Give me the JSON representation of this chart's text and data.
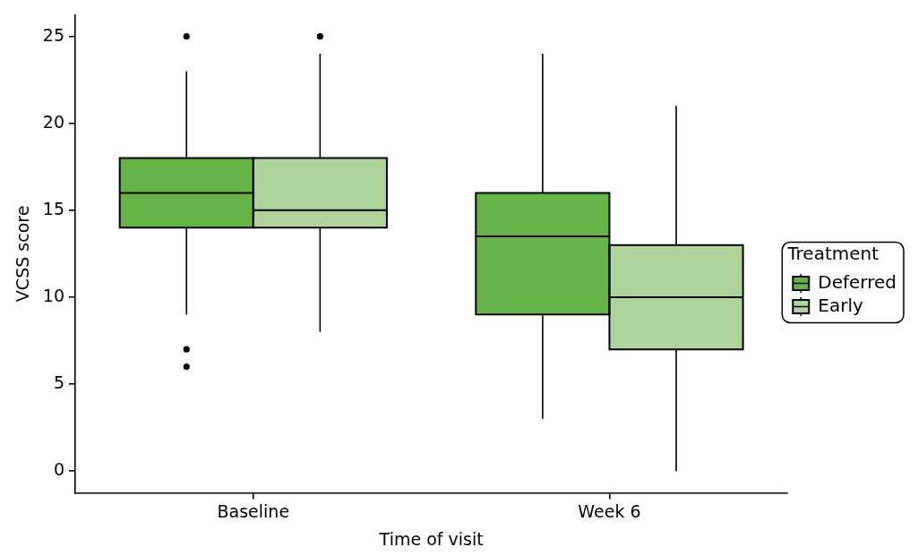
{
  "chart_data": {
    "type": "box",
    "xlabel": "Time of visit",
    "ylabel": "VCSS score",
    "legend_title": "Treatment",
    "categories": [
      "Baseline",
      "Week 6"
    ],
    "series": [
      {
        "name": "Deferred",
        "color": "#66b447",
        "boxes": [
          {
            "low": 9,
            "q1": 14,
            "median": 16,
            "q3": 18,
            "high": 23,
            "outliers": [
              25,
              7,
              6
            ]
          },
          {
            "low": 3,
            "q1": 9,
            "median": 13.5,
            "q3": 16,
            "high": 24
          }
        ]
      },
      {
        "name": "Early",
        "color": "#aed49c",
        "boxes": [
          {
            "low": 8,
            "q1": 14,
            "median": 15,
            "q3": 18,
            "high": 24,
            "outliers": [
              25
            ]
          },
          {
            "low": 0,
            "q1": 7,
            "median": 10,
            "q3": 13,
            "high": 21
          }
        ]
      }
    ],
    "ylim": [
      -1.25,
      26.25
    ],
    "yticks": [
      0,
      5,
      10,
      15,
      20,
      25
    ],
    "grid": false,
    "legend": "right"
  }
}
